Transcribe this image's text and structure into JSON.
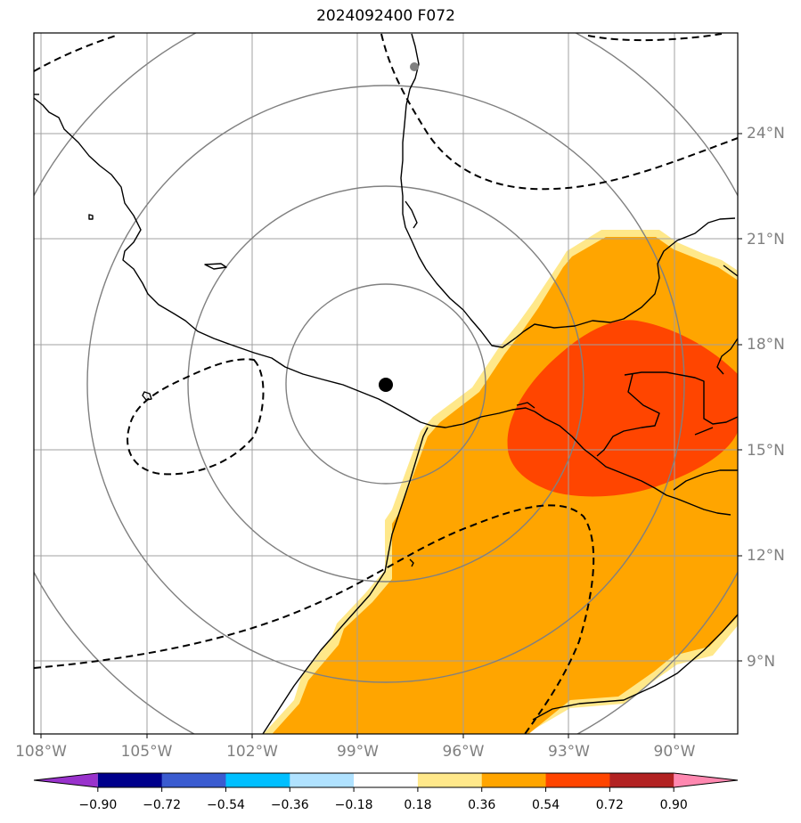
{
  "title": "2024092400 F072",
  "map": {
    "lon_range": [
      -108.3,
      -88.8
    ],
    "lat_range": [
      7.5,
      27.5
    ],
    "storm_center": {
      "lon": -98.0,
      "lat": 16.9,
      "color": "#000000"
    },
    "secondary_marker": {
      "lon": -97.2,
      "lat": 26.6,
      "color": "#808080"
    },
    "range_rings_radius_km": [
      250,
      500,
      750,
      1000
    ],
    "gridlines": true,
    "coastline_color": "#000000",
    "contour_style": "dashed"
  },
  "lon_labels": [
    {
      "lon": -108,
      "text": "108°W"
    },
    {
      "lon": -105,
      "text": "105°W"
    },
    {
      "lon": -102,
      "text": "102°W"
    },
    {
      "lon": -99,
      "text": "99°W"
    },
    {
      "lon": -96,
      "text": "96°W"
    },
    {
      "lon": -93,
      "text": "93°W"
    },
    {
      "lon": -90,
      "text": "90°W"
    }
  ],
  "lat_labels": [
    {
      "lat": 24,
      "text": "24°N"
    },
    {
      "lat": 21,
      "text": "21°N"
    },
    {
      "lat": 18,
      "text": "18°N"
    },
    {
      "lat": 15,
      "text": "15°N"
    },
    {
      "lat": 12,
      "text": "12°N"
    },
    {
      "lat": 9,
      "text": "9°N"
    }
  ],
  "colorbar": {
    "extend": "both",
    "levels": [
      -0.9,
      -0.72,
      -0.54,
      -0.36,
      -0.18,
      0.18,
      0.36,
      0.54,
      0.72,
      0.9
    ],
    "tick_labels": [
      "−0.90",
      "−0.72",
      "−0.54",
      "−0.36",
      "−0.18",
      "0.18",
      "0.36",
      "0.54",
      "0.72",
      "0.90"
    ],
    "colors": [
      "#9932cc",
      "#00008b",
      "#3a5bd0",
      "#00bfff",
      "#b0e2ff",
      "#ffffff",
      "#ffe88a",
      "#ffa500",
      "#ff4500",
      "#b22222",
      "#ff88b0"
    ]
  },
  "shaded_fields": [
    {
      "level": "0.18–0.36",
      "color": "#ffe88a"
    },
    {
      "level": "0.36–0.54",
      "color": "#ffa500"
    },
    {
      "level": "0.54–0.72",
      "color": "#ff4500"
    }
  ]
}
